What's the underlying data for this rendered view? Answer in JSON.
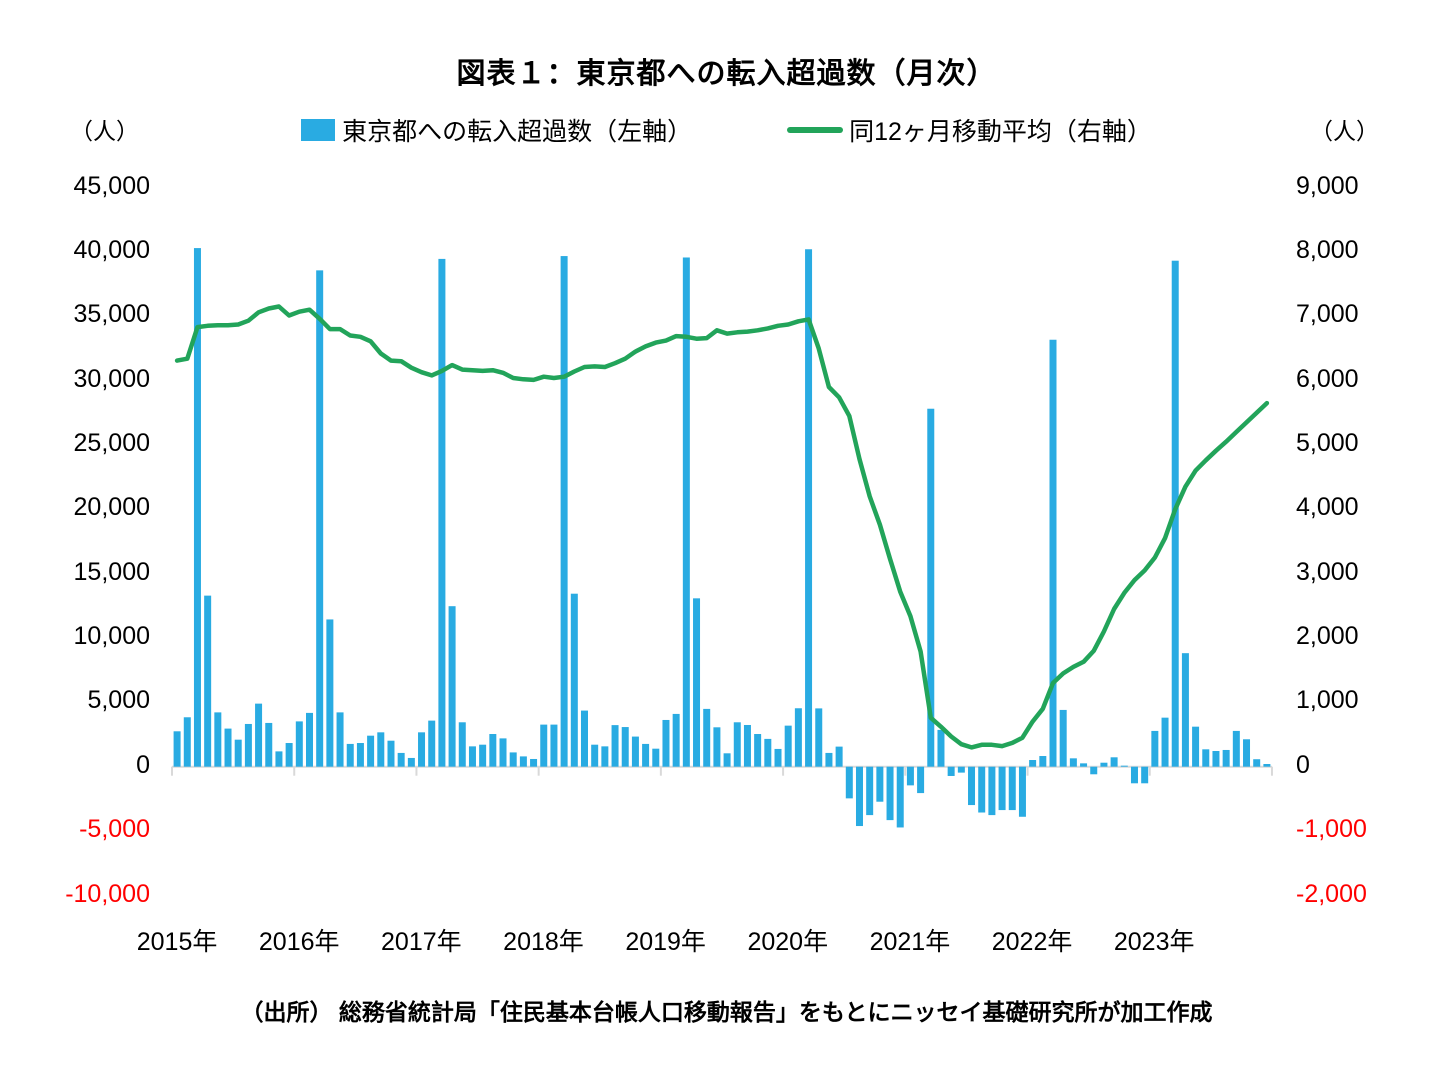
{
  "title": "図表１：東京都への転入超過数（月次）",
  "legend": [
    {
      "label": "東京都への転入超過数（左軸）",
      "marker": "bar-swatch",
      "color": "#29abe2"
    },
    {
      "label": "同12ヶ月移動平均（右軸）",
      "marker": "line-swatch",
      "color": "#22a45a"
    }
  ],
  "left_axis": {
    "unit": "（人）",
    "ticks": [
      {
        "label": "45,000",
        "negative": false
      },
      {
        "label": "40,000",
        "negative": false
      },
      {
        "label": "35,000",
        "negative": false
      },
      {
        "label": "30,000",
        "negative": false
      },
      {
        "label": "25,000",
        "negative": false
      },
      {
        "label": "20,000",
        "negative": false
      },
      {
        "label": "15,000",
        "negative": false
      },
      {
        "label": "10,000",
        "negative": false
      },
      {
        "label": "5,000",
        "negative": false
      },
      {
        "label": "0",
        "negative": false
      },
      {
        "label": "-5,000",
        "negative": true
      },
      {
        "label": "-10,000",
        "negative": true
      }
    ]
  },
  "right_axis": {
    "unit": "（人）",
    "ticks": [
      {
        "label": "9,000",
        "negative": false
      },
      {
        "label": "8,000",
        "negative": false
      },
      {
        "label": "7,000",
        "negative": false
      },
      {
        "label": "6,000",
        "negative": false
      },
      {
        "label": "5,000",
        "negative": false
      },
      {
        "label": "4,000",
        "negative": false
      },
      {
        "label": "3,000",
        "negative": false
      },
      {
        "label": "2,000",
        "negative": false
      },
      {
        "label": "1,000",
        "negative": false
      },
      {
        "label": "0",
        "negative": false
      },
      {
        "label": "-1,000",
        "negative": true
      },
      {
        "label": "-2,000",
        "negative": true
      }
    ]
  },
  "x_axis": {
    "year_labels": [
      "2015年",
      "2016年",
      "2017年",
      "2018年",
      "2019年",
      "2020年",
      "2021年",
      "2022年",
      "2023年"
    ]
  },
  "source": "（出所） 総務省統計局「住民基本台帳人口移動報告」をもとにニッセイ基礎研究所が加工作成",
  "colors": {
    "bar_blue": "#29abe2",
    "line_green": "#22a45a",
    "negative_label_red": "#ff0000",
    "axis_gray": "#d9d9d9",
    "text_black": "#000000"
  },
  "chart_data": {
    "type": "bar+line combo",
    "x_start": "2015-01",
    "x_interval": "month",
    "x_months": 108,
    "left_ylim": [
      -10000,
      45000
    ],
    "right_ylim": [
      -2000,
      9000
    ],
    "grid": "none",
    "legend_position": "top-center",
    "series": [
      {
        "name": "東京都への転入超過数（左軸）",
        "type": "bar",
        "axis": "left",
        "color": "#29abe2",
        "values": [
          2750,
          3840,
          40290,
          13290,
          4220,
          2960,
          2100,
          3320,
          4900,
          3400,
          1190,
          1840,
          3520,
          4180,
          38560,
          11440,
          4220,
          1770,
          1840,
          2410,
          2670,
          2020,
          1070,
          680,
          2670,
          3580,
          39450,
          12470,
          3450,
          1580,
          1710,
          2540,
          2200,
          1110,
          800,
          600,
          3270,
          3270,
          39670,
          13440,
          4360,
          1710,
          1580,
          3230,
          3080,
          2340,
          1770,
          1400,
          3630,
          4100,
          39560,
          13080,
          4490,
          3060,
          1040,
          3450,
          3240,
          2540,
          2160,
          1380,
          3190,
          4540,
          40200,
          4530,
          1070,
          1560,
          -2460,
          -4610,
          -3760,
          -2720,
          -4150,
          -4720,
          -1450,
          -2050,
          27810,
          2860,
          -720,
          -460,
          -2980,
          -3560,
          -3760,
          -3370,
          -3370,
          -3890,
          520,
          830,
          33170,
          4410,
          650,
          260,
          -590,
          310,
          730,
          80,
          -1290,
          -1290,
          2780,
          3810,
          39310,
          8820,
          3110,
          1350,
          1220,
          1300,
          2780,
          2130,
          580,
          210
        ]
      },
      {
        "name": "同12ヶ月移動平均（右軸）",
        "type": "line",
        "axis": "right",
        "color": "#22a45a",
        "values": [
          6310,
          6340,
          6830,
          6850,
          6860,
          6860,
          6870,
          6930,
          7060,
          7120,
          7150,
          7010,
          7070,
          7100,
          6960,
          6800,
          6800,
          6700,
          6680,
          6610,
          6420,
          6310,
          6300,
          6200,
          6130,
          6080,
          6150,
          6240,
          6170,
          6160,
          6150,
          6160,
          6120,
          6040,
          6020,
          6010,
          6060,
          6040,
          6060,
          6140,
          6210,
          6220,
          6210,
          6270,
          6340,
          6450,
          6530,
          6590,
          6620,
          6690,
          6680,
          6650,
          6660,
          6780,
          6730,
          6750,
          6760,
          6780,
          6810,
          6850,
          6870,
          6920,
          6950,
          6500,
          5900,
          5740,
          5450,
          4780,
          4200,
          3760,
          3230,
          2720,
          2340,
          1790,
          760,
          620,
          470,
          350,
          300,
          340,
          340,
          320,
          370,
          450,
          700,
          900,
          1300,
          1450,
          1550,
          1630,
          1800,
          2100,
          2450,
          2700,
          2900,
          3050,
          3250,
          3550,
          4000,
          4350,
          4600,
          4760,
          4910,
          5050,
          5200,
          5350,
          5500,
          5650
        ]
      }
    ]
  }
}
